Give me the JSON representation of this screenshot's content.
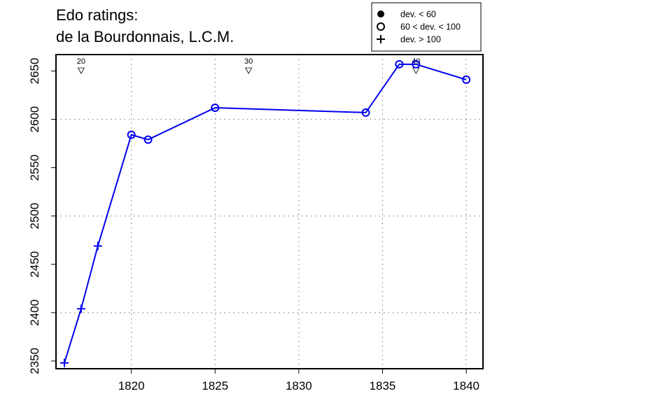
{
  "chart_data": {
    "type": "line",
    "title": "Edo ratings:",
    "subtitle": "de la Bourdonnais, L.C.M.",
    "xlabel": "",
    "ylabel": "",
    "xlim": [
      1815.5,
      1841.0
    ],
    "ylim": [
      2342,
      2667
    ],
    "x_ticks": [
      1820,
      1825,
      1830,
      1835,
      1840
    ],
    "y_ticks": [
      2350,
      2400,
      2450,
      2500,
      2550,
      2600,
      2650
    ],
    "x_gridlines": [
      1820,
      1825,
      1830,
      1835,
      1840
    ],
    "y_gridlines": [
      2400,
      2500,
      2600
    ],
    "grid": true,
    "line_color": "#0000ee",
    "series": [
      {
        "points": [
          {
            "x": 1816,
            "y": 2348,
            "marker": "plus"
          },
          {
            "x": 1817,
            "y": 2404,
            "marker": "plus"
          },
          {
            "x": 1818,
            "y": 2469,
            "marker": "plus"
          },
          {
            "x": 1820,
            "y": 2584,
            "marker": "circle-open"
          },
          {
            "x": 1821,
            "y": 2579,
            "marker": "circle-open"
          },
          {
            "x": 1825,
            "y": 2612,
            "marker": "circle-open"
          },
          {
            "x": 1834,
            "y": 2607,
            "marker": "circle-open"
          },
          {
            "x": 1836,
            "y": 2657,
            "marker": "circle-open"
          },
          {
            "x": 1837,
            "y": 2657,
            "marker": "circle-open"
          },
          {
            "x": 1840,
            "y": 2641,
            "marker": "circle-open"
          }
        ]
      }
    ],
    "annotations": [
      {
        "x": 1817,
        "label": "20"
      },
      {
        "x": 1827,
        "label": "30"
      },
      {
        "x": 1837,
        "label": "40"
      }
    ],
    "legend": {
      "placement": "top-right",
      "entries": [
        {
          "marker": "circle-filled",
          "label": "dev. < 60"
        },
        {
          "marker": "circle-open",
          "label": "60 < dev. < 100"
        },
        {
          "marker": "plus",
          "label": "dev. > 100"
        }
      ]
    }
  }
}
